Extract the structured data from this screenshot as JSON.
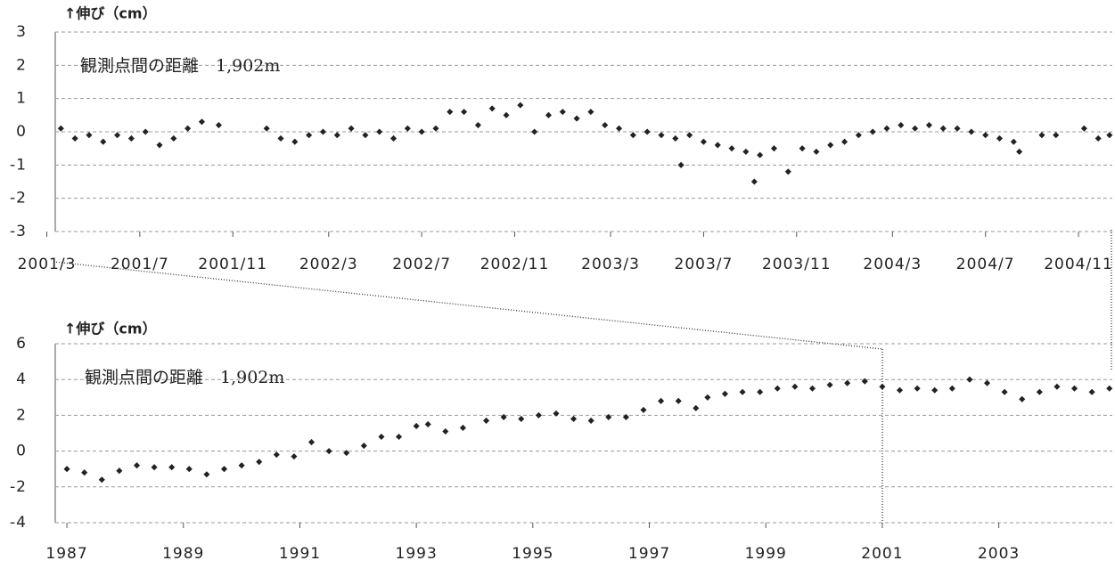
{
  "chart_data": [
    {
      "type": "scatter",
      "y_label": "↑伸び（cm）",
      "annotation": "観測点間の距離　1,902m",
      "color": "#222",
      "grid": true,
      "xlim": [
        2001.2,
        2004.95
      ],
      "ylim": [
        -3,
        3
      ],
      "yticks": [
        -3,
        -2,
        -1,
        0,
        1,
        2,
        3
      ],
      "xticks": [
        {
          "value": 2001.17,
          "label": "2001/3"
        },
        {
          "value": 2001.5,
          "label": "2001/7"
        },
        {
          "value": 2001.83,
          "label": "2001/11"
        },
        {
          "value": 2002.17,
          "label": "2002/3"
        },
        {
          "value": 2002.5,
          "label": "2002/7"
        },
        {
          "value": 2002.83,
          "label": "2002/11"
        },
        {
          "value": 2003.17,
          "label": "2003/3"
        },
        {
          "value": 2003.5,
          "label": "2003/7"
        },
        {
          "value": 2003.83,
          "label": "2003/11"
        },
        {
          "value": 2004.17,
          "label": "2004/3"
        },
        {
          "value": 2004.5,
          "label": "2004/7"
        },
        {
          "value": 2004.83,
          "label": "2004/11"
        }
      ],
      "x": [
        2001.22,
        2001.27,
        2001.32,
        2001.37,
        2001.42,
        2001.47,
        2001.52,
        2001.57,
        2001.62,
        2001.67,
        2001.72,
        2001.78,
        2001.95,
        2002.0,
        2002.05,
        2002.1,
        2002.15,
        2002.2,
        2002.25,
        2002.3,
        2002.35,
        2002.4,
        2002.45,
        2002.5,
        2002.55,
        2002.6,
        2002.65,
        2002.7,
        2002.75,
        2002.8,
        2002.85,
        2002.9,
        2002.95,
        2003.0,
        2003.05,
        2003.1,
        2003.15,
        2003.2,
        2003.25,
        2003.3,
        2003.35,
        2003.4,
        2003.42,
        2003.45,
        2003.5,
        2003.55,
        2003.6,
        2003.65,
        2003.68,
        2003.7,
        2003.75,
        2003.8,
        2003.85,
        2003.9,
        2003.95,
        2004.0,
        2004.05,
        2004.1,
        2004.15,
        2004.2,
        2004.25,
        2004.3,
        2004.35,
        2004.4,
        2004.45,
        2004.5,
        2004.55,
        2004.6,
        2004.62,
        2004.7,
        2004.75,
        2004.85,
        2004.9,
        2004.94
      ],
      "values": [
        0.1,
        -0.2,
        -0.1,
        -0.3,
        -0.1,
        -0.2,
        0.0,
        -0.4,
        -0.2,
        0.1,
        0.3,
        0.2,
        0.1,
        -0.2,
        -0.3,
        -0.1,
        0.0,
        -0.1,
        0.1,
        -0.1,
        0.0,
        -0.2,
        0.1,
        0.0,
        0.1,
        0.6,
        0.6,
        0.2,
        0.7,
        0.5,
        0.8,
        0.0,
        0.5,
        0.6,
        0.4,
        0.6,
        0.2,
        0.1,
        -0.1,
        0.0,
        -0.1,
        -0.2,
        -1.0,
        -0.1,
        -0.3,
        -0.4,
        -0.5,
        -0.6,
        -1.5,
        -0.7,
        -0.5,
        -1.2,
        -0.5,
        -0.6,
        -0.4,
        -0.3,
        -0.1,
        0.0,
        0.1,
        0.2,
        0.1,
        0.2,
        0.1,
        0.1,
        0.0,
        -0.1,
        -0.2,
        -0.3,
        -0.6,
        -0.1,
        -0.1,
        0.1,
        -0.2,
        -0.1
      ]
    },
    {
      "type": "scatter",
      "y_label": "↑伸び（cm）",
      "annotation": "観測点間の距離　1,902m",
      "color": "#222",
      "grid": true,
      "xlim": [
        1986.8,
        2004.95
      ],
      "ylim": [
        -4,
        6
      ],
      "yticks": [
        -4,
        -2,
        0,
        2,
        4,
        6
      ],
      "xticks": [
        1987,
        1989,
        1991,
        1993,
        1995,
        1997,
        1999,
        2001,
        2003
      ],
      "x": [
        1987.0,
        1987.3,
        1987.6,
        1987.9,
        1988.2,
        1988.5,
        1988.8,
        1989.1,
        1989.4,
        1989.7,
        1990.0,
        1990.3,
        1990.6,
        1990.9,
        1991.2,
        1991.5,
        1991.8,
        1992.1,
        1992.4,
        1992.7,
        1993.0,
        1993.2,
        1993.5,
        1993.8,
        1994.2,
        1994.5,
        1994.8,
        1995.1,
        1995.4,
        1995.7,
        1996.0,
        1996.3,
        1996.6,
        1996.9,
        1997.2,
        1997.5,
        1997.8,
        1998.0,
        1998.3,
        1998.6,
        1998.9,
        1999.2,
        1999.5,
        1999.8,
        2000.1,
        2000.4,
        2000.7,
        2001.0,
        2001.3,
        2001.6,
        2001.9,
        2002.2,
        2002.5,
        2002.8,
        2003.1,
        2003.4,
        2003.7,
        2004.0,
        2004.3,
        2004.6,
        2004.9
      ],
      "values": [
        -1.0,
        -1.2,
        -1.6,
        -1.1,
        -0.8,
        -0.9,
        -0.9,
        -1.0,
        -1.3,
        -1.0,
        -0.8,
        -0.6,
        -0.2,
        -0.3,
        0.5,
        0.0,
        -0.1,
        0.3,
        0.8,
        0.8,
        1.4,
        1.5,
        1.1,
        1.3,
        1.7,
        1.9,
        1.8,
        2.0,
        2.1,
        1.8,
        1.7,
        1.9,
        1.9,
        2.3,
        2.8,
        2.8,
        2.4,
        3.0,
        3.2,
        3.3,
        3.3,
        3.5,
        3.6,
        3.5,
        3.7,
        3.8,
        3.9,
        3.6,
        3.4,
        3.5,
        3.4,
        3.5,
        4.0,
        3.8,
        3.3,
        2.9,
        3.3,
        3.6,
        3.5,
        3.3,
        3.5
      ]
    }
  ]
}
